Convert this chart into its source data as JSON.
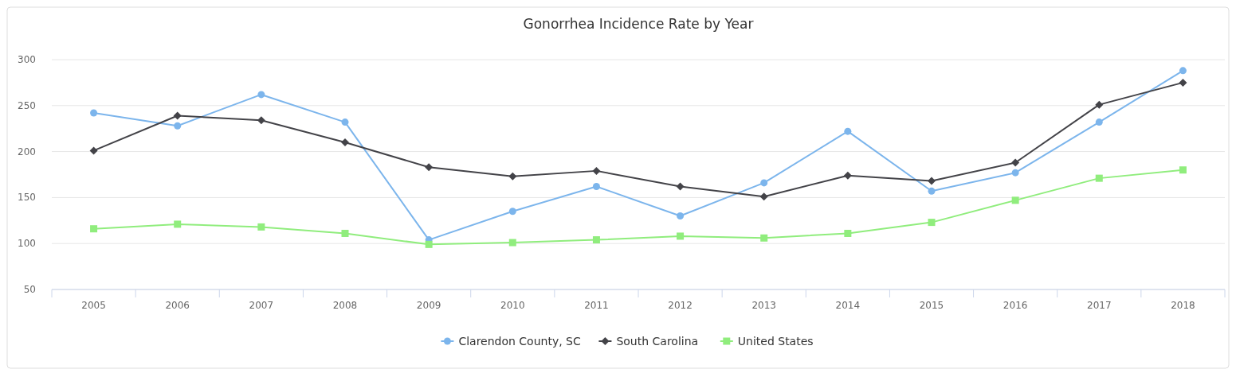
{
  "chart_data": {
    "type": "line",
    "title": "Gonorrhea Incidence Rate by Year",
    "categories": [
      "2005",
      "2006",
      "2007",
      "2008",
      "2009",
      "2010",
      "2011",
      "2012",
      "2013",
      "2014",
      "2015",
      "2016",
      "2017",
      "2018"
    ],
    "series": [
      {
        "name": "Clarendon County, SC",
        "color": "#7cb5ec",
        "marker": "circle",
        "values": [
          242,
          228,
          262,
          232,
          104,
          135,
          162,
          130,
          166,
          222,
          157,
          177,
          232,
          288
        ]
      },
      {
        "name": "South Carolina",
        "color": "#434348",
        "marker": "diamond",
        "values": [
          201,
          239,
          234,
          210,
          183,
          173,
          179,
          162,
          151,
          174,
          168,
          188,
          251,
          275
        ]
      },
      {
        "name": "United States",
        "color": "#90ed7d",
        "marker": "square",
        "values": [
          116,
          121,
          118,
          111,
          99,
          101,
          104,
          108,
          106,
          111,
          123,
          147,
          171,
          180
        ]
      }
    ],
    "ylim": [
      50,
      300
    ],
    "yticks": [
      50,
      100,
      150,
      200,
      250,
      300
    ],
    "grid": "y",
    "legend": "bottom"
  }
}
